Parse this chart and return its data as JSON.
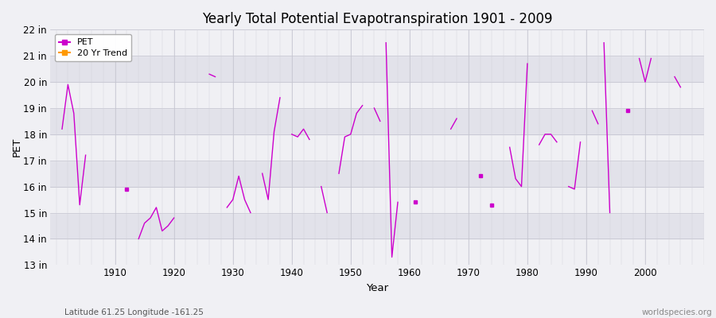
{
  "title": "Yearly Total Potential Evapotranspiration 1901 - 2009",
  "xlabel": "Year",
  "ylabel": "PET",
  "subtitle_left": "Latitude 61.25 Longitude -161.25",
  "subtitle_right": "worldspecies.org",
  "ylim": [
    13,
    22
  ],
  "xlim": [
    1899,
    2010
  ],
  "yticks": [
    13,
    14,
    15,
    16,
    17,
    18,
    19,
    20,
    21,
    22
  ],
  "ytick_labels": [
    "13 in",
    "14 in",
    "15 in",
    "16 in",
    "17 in",
    "18 in",
    "19 in",
    "20 in",
    "21 in",
    "22 in"
  ],
  "xticks": [
    1910,
    1920,
    1930,
    1940,
    1950,
    1960,
    1970,
    1980,
    1990,
    2000
  ],
  "line_color": "#cc00cc",
  "trend_color": "#ff9900",
  "bg_light": "#f0f0f4",
  "bg_dark": "#e2e2ea",
  "fig_bg": "#f0f0f4",
  "segments": [
    [
      [
        1901,
        18.2
      ],
      [
        1902,
        19.9
      ],
      [
        1903,
        18.8
      ],
      [
        1904,
        15.3
      ],
      [
        1905,
        17.2
      ]
    ],
    [
      [
        1912,
        15.9
      ]
    ],
    [
      [
        1914,
        14.0
      ],
      [
        1915,
        14.6
      ],
      [
        1916,
        14.8
      ],
      [
        1917,
        15.2
      ],
      [
        1918,
        14.3
      ],
      [
        1919,
        14.5
      ],
      [
        1920,
        14.8
      ]
    ],
    [
      [
        1926,
        20.3
      ],
      [
        1927,
        20.2
      ]
    ],
    [
      [
        1929,
        15.2
      ],
      [
        1930,
        15.5
      ],
      [
        1931,
        16.4
      ],
      [
        1932,
        15.5
      ],
      [
        1933,
        15.0
      ]
    ],
    [
      [
        1935,
        16.5
      ],
      [
        1936,
        15.5
      ],
      [
        1937,
        18.1
      ],
      [
        1938,
        19.4
      ]
    ],
    [
      [
        1940,
        18.0
      ],
      [
        1941,
        17.9
      ],
      [
        1942,
        18.2
      ],
      [
        1943,
        17.8
      ]
    ],
    [
      [
        1945,
        16.0
      ],
      [
        1946,
        15.0
      ]
    ],
    [
      [
        1948,
        16.5
      ],
      [
        1949,
        17.9
      ],
      [
        1950,
        18.0
      ],
      [
        1951,
        18.8
      ],
      [
        1952,
        19.1
      ]
    ],
    [
      [
        1954,
        19.0
      ],
      [
        1955,
        18.5
      ]
    ],
    [
      [
        1956,
        21.5
      ],
      [
        1957,
        13.3
      ],
      [
        1958,
        15.4
      ]
    ],
    [
      [
        1961,
        15.4
      ]
    ],
    [
      [
        1967,
        18.2
      ],
      [
        1968,
        18.6
      ]
    ],
    [
      [
        1972,
        16.4
      ]
    ],
    [
      [
        1974,
        15.3
      ]
    ],
    [
      [
        1977,
        17.5
      ],
      [
        1978,
        16.3
      ],
      [
        1979,
        16.0
      ],
      [
        1980,
        20.7
      ]
    ],
    [
      [
        1982,
        17.6
      ],
      [
        1983,
        18.0
      ],
      [
        1984,
        18.0
      ],
      [
        1985,
        17.7
      ]
    ],
    [
      [
        1987,
        16.0
      ],
      [
        1988,
        15.9
      ],
      [
        1989,
        17.7
      ]
    ],
    [
      [
        1991,
        18.9
      ],
      [
        1992,
        18.4
      ]
    ],
    [
      [
        1993,
        21.5
      ],
      [
        1994,
        15.0
      ]
    ],
    [
      [
        1997,
        18.9
      ]
    ],
    [
      [
        1999,
        20.9
      ],
      [
        2000,
        20.0
      ],
      [
        2001,
        20.9
      ]
    ],
    [
      [
        2005,
        20.2
      ],
      [
        2006,
        19.8
      ]
    ]
  ]
}
